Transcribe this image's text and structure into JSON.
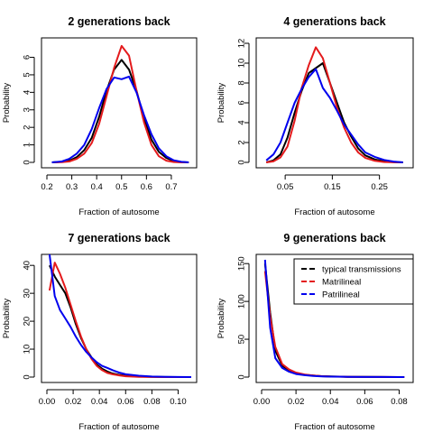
{
  "chart_data": [
    {
      "type": "line",
      "title": "2 generations back",
      "xlabel": "Fraction of autosome",
      "ylabel": "Probability",
      "xlim": [
        0.2,
        0.78
      ],
      "ylim": [
        0,
        6.8
      ],
      "xticks": [
        0.2,
        0.3,
        0.4,
        0.5,
        0.6,
        0.7
      ],
      "yticks": [
        0,
        1,
        2,
        3,
        4,
        5,
        6
      ],
      "xtick_labels": [
        "0.2",
        "0.3",
        "0.4",
        "0.5",
        "0.6",
        "0.7"
      ],
      "ytick_labels": [
        "0",
        "1",
        "2",
        "3",
        "4",
        "5",
        "6"
      ],
      "grid": false,
      "series": [
        {
          "color": "#000000",
          "x": [
            0.22,
            0.26,
            0.29,
            0.32,
            0.35,
            0.38,
            0.41,
            0.44,
            0.47,
            0.5,
            0.53,
            0.56,
            0.59,
            0.62,
            0.65,
            0.68,
            0.71,
            0.74,
            0.77
          ],
          "y": [
            0,
            0.03,
            0.1,
            0.3,
            0.7,
            1.4,
            2.6,
            4.1,
            5.3,
            5.85,
            5.3,
            4.1,
            2.5,
            1.3,
            0.6,
            0.25,
            0.08,
            0.02,
            0
          ]
        },
        {
          "color": "#e41a1c",
          "x": [
            0.22,
            0.26,
            0.29,
            0.32,
            0.35,
            0.38,
            0.41,
            0.44,
            0.47,
            0.5,
            0.53,
            0.56,
            0.59,
            0.62,
            0.65,
            0.68,
            0.71,
            0.74,
            0.77
          ],
          "y": [
            0,
            0.01,
            0.05,
            0.2,
            0.5,
            1.1,
            2.2,
            3.8,
            5.4,
            6.65,
            6.1,
            4.1,
            2.3,
            1.0,
            0.35,
            0.1,
            0.02,
            0,
            0
          ]
        },
        {
          "color": "#0000ee",
          "x": [
            0.22,
            0.26,
            0.29,
            0.32,
            0.35,
            0.38,
            0.41,
            0.44,
            0.47,
            0.5,
            0.53,
            0.56,
            0.59,
            0.62,
            0.65,
            0.68,
            0.71,
            0.74,
            0.77
          ],
          "y": [
            0,
            0.05,
            0.2,
            0.5,
            1.0,
            1.9,
            3.1,
            4.2,
            4.85,
            4.75,
            4.9,
            4.0,
            2.7,
            1.6,
            0.8,
            0.35,
            0.12,
            0.03,
            0
          ]
        }
      ]
    },
    {
      "type": "line",
      "title": "4 generations back",
      "xlabel": "Fraction of autosome",
      "ylabel": "Probability",
      "xlim": [
        0.0,
        0.31
      ],
      "ylim": [
        0,
        12
      ],
      "xticks": [
        0.05,
        0.15,
        0.25
      ],
      "yticks": [
        0,
        2,
        4,
        6,
        8,
        10,
        12
      ],
      "xtick_labels": [
        "0.05",
        "0.15",
        "0.25"
      ],
      "ytick_labels": [
        "0",
        "2",
        "4",
        "6",
        "8",
        "10",
        "12"
      ],
      "grid": false,
      "series": [
        {
          "color": "#000000",
          "x": [
            0.01,
            0.025,
            0.04,
            0.055,
            0.07,
            0.085,
            0.1,
            0.115,
            0.13,
            0.145,
            0.16,
            0.175,
            0.19,
            0.205,
            0.22,
            0.24,
            0.26,
            0.28,
            0.3
          ],
          "y": [
            0,
            0.2,
            0.8,
            2.5,
            5.0,
            7.2,
            9.0,
            9.5,
            10.0,
            8.0,
            6.0,
            4.0,
            2.6,
            1.4,
            0.7,
            0.3,
            0.1,
            0.02,
            0
          ]
        },
        {
          "color": "#e41a1c",
          "x": [
            0.01,
            0.025,
            0.04,
            0.055,
            0.07,
            0.085,
            0.1,
            0.115,
            0.13,
            0.145,
            0.16,
            0.175,
            0.19,
            0.205,
            0.22,
            0.24,
            0.26,
            0.28,
            0.3
          ],
          "y": [
            0,
            0.1,
            0.5,
            1.6,
            4.2,
            7.5,
            9.8,
            11.6,
            10.5,
            8.0,
            5.5,
            3.5,
            2.0,
            1.0,
            0.45,
            0.15,
            0.04,
            0.01,
            0
          ]
        },
        {
          "color": "#0000ee",
          "x": [
            0.01,
            0.025,
            0.04,
            0.055,
            0.07,
            0.085,
            0.1,
            0.115,
            0.13,
            0.145,
            0.16,
            0.175,
            0.19,
            0.205,
            0.22,
            0.24,
            0.26,
            0.28,
            0.3
          ],
          "y": [
            0.2,
            0.8,
            2.0,
            4.0,
            6.0,
            7.4,
            8.6,
            9.4,
            7.5,
            6.5,
            5.2,
            3.8,
            2.8,
            1.8,
            1.0,
            0.55,
            0.25,
            0.08,
            0
          ]
        }
      ]
    },
    {
      "type": "line",
      "title": "7 generations back",
      "xlabel": "Fraction of autosome",
      "ylabel": "Probability",
      "xlim": [
        0.0,
        0.11
      ],
      "ylim": [
        0,
        42
      ],
      "xticks": [
        0.0,
        0.02,
        0.04,
        0.06,
        0.08,
        0.1
      ],
      "yticks": [
        0,
        10,
        20,
        30,
        40
      ],
      "xtick_labels": [
        "0.00",
        "0.02",
        "0.04",
        "0.06",
        "0.08",
        "0.10"
      ],
      "ytick_labels": [
        "0",
        "10",
        "20",
        "30",
        "40"
      ],
      "grid": false,
      "series": [
        {
          "color": "#000000",
          "x": [
            0.002,
            0.006,
            0.01,
            0.014,
            0.018,
            0.022,
            0.026,
            0.03,
            0.034,
            0.038,
            0.042,
            0.046,
            0.05,
            0.055,
            0.06,
            0.07,
            0.08,
            0.09,
            0.1,
            0.11
          ],
          "y": [
            40,
            36,
            33,
            30,
            25,
            19,
            14,
            10,
            7,
            4.5,
            3,
            2,
            1.3,
            0.8,
            0.5,
            0.2,
            0.08,
            0.03,
            0.01,
            0
          ]
        },
        {
          "color": "#e41a1c",
          "x": [
            0.002,
            0.006,
            0.01,
            0.014,
            0.018,
            0.022,
            0.026,
            0.03,
            0.034,
            0.038,
            0.042,
            0.046,
            0.05,
            0.055,
            0.06,
            0.07,
            0.08,
            0.09,
            0.1,
            0.11
          ],
          "y": [
            31,
            41,
            37,
            32,
            26,
            20,
            14.5,
            10,
            6.5,
            4,
            2.5,
            1.5,
            1,
            0.6,
            0.3,
            0.1,
            0.03,
            0.01,
            0,
            0
          ]
        },
        {
          "color": "#0000ee",
          "x": [
            0.002,
            0.006,
            0.01,
            0.014,
            0.018,
            0.022,
            0.026,
            0.03,
            0.034,
            0.038,
            0.042,
            0.046,
            0.05,
            0.055,
            0.06,
            0.07,
            0.08,
            0.09,
            0.1,
            0.11
          ],
          "y": [
            44,
            29,
            24,
            21,
            18,
            14.5,
            11.5,
            9,
            7,
            5.3,
            4,
            3.3,
            2.5,
            1.6,
            1,
            0.5,
            0.2,
            0.08,
            0.03,
            0
          ]
        }
      ]
    },
    {
      "type": "line",
      "title": "9 generations back",
      "xlabel": "Fraction of autosome",
      "ylabel": "Probability",
      "xlim": [
        0.0,
        0.085
      ],
      "ylim": [
        0,
        155
      ],
      "xticks": [
        0.0,
        0.02,
        0.04,
        0.06,
        0.08
      ],
      "yticks": [
        0,
        50,
        100,
        150
      ],
      "xtick_labels": [
        "0.00",
        "0.02",
        "0.04",
        "0.06",
        "0.08"
      ],
      "ytick_labels": [
        "0",
        "50",
        "100",
        "150"
      ],
      "grid": false,
      "legend": {
        "position": "top-right",
        "entries": [
          {
            "label": "typical transmissions",
            "color": "#000000"
          },
          {
            "label": "Matrilineal",
            "color": "#e41a1c"
          },
          {
            "label": "Patrilineal",
            "color": "#0000ee"
          }
        ]
      },
      "series": [
        {
          "color": "#000000",
          "x": [
            0.002,
            0.005,
            0.008,
            0.012,
            0.016,
            0.02,
            0.025,
            0.03,
            0.035,
            0.04,
            0.05,
            0.06,
            0.07,
            0.08,
            0.083
          ],
          "y": [
            150,
            85,
            35,
            15,
            9,
            5,
            3,
            2,
            1.2,
            0.8,
            0.4,
            0.2,
            0.1,
            0.05,
            0
          ]
        },
        {
          "color": "#e41a1c",
          "x": [
            0.002,
            0.005,
            0.008,
            0.012,
            0.016,
            0.02,
            0.025,
            0.03,
            0.035,
            0.04,
            0.05,
            0.06,
            0.07,
            0.08,
            0.083
          ],
          "y": [
            140,
            80,
            40,
            17,
            10,
            6,
            3.5,
            2,
            1.2,
            0.7,
            0.3,
            0.15,
            0.07,
            0.03,
            0
          ]
        },
        {
          "color": "#0000ee",
          "x": [
            0.002,
            0.005,
            0.008,
            0.012,
            0.016,
            0.02,
            0.025,
            0.03,
            0.035,
            0.04,
            0.05,
            0.06,
            0.07,
            0.08,
            0.083
          ],
          "y": [
            155,
            65,
            25,
            12,
            7,
            4,
            2.5,
            1.5,
            1,
            0.6,
            0.3,
            0.15,
            0.07,
            0.03,
            0
          ]
        }
      ]
    }
  ]
}
